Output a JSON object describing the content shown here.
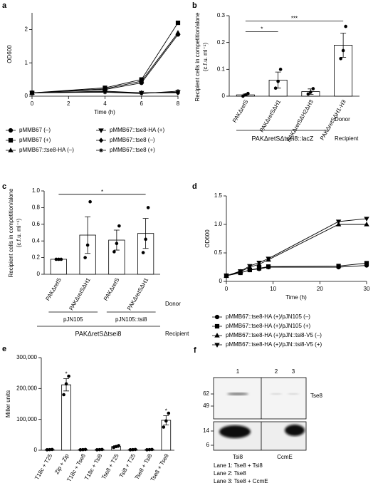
{
  "chart_data": [
    {
      "label": "a",
      "type": "line",
      "ylabel": "OD600",
      "xlabel": "Time (h)",
      "x": [
        0,
        4,
        6,
        8
      ],
      "xlim": [
        0,
        8
      ],
      "xticks": [
        0,
        2,
        4,
        6,
        8
      ],
      "ylim": [
        0,
        2.5
      ],
      "yticks": [
        0,
        1,
        2
      ],
      "series": [
        {
          "name": "pMMB67 (–)",
          "color": "#000000",
          "marker": "circle",
          "values": [
            0.1,
            0.2,
            0.4,
            1.85
          ]
        },
        {
          "name": "pMMB67 (+)",
          "color": "#000000",
          "marker": "square",
          "values": [
            0.1,
            0.25,
            0.5,
            2.2
          ]
        },
        {
          "name": "pMMB67::tse8-HA (–)",
          "color": "#000000",
          "marker": "triangle",
          "values": [
            0.1,
            0.22,
            0.45,
            1.9
          ]
        },
        {
          "name": "pMMB67::tse8-HA (+)",
          "color": "#000000",
          "marker": "tri-down",
          "values": [
            0.1,
            0.15,
            0.1,
            0.12
          ]
        },
        {
          "name": "pMMB67::tse8 (–)",
          "color": "#000000",
          "marker": "diamond",
          "values": [
            0.1,
            0.13,
            0.1,
            0.1
          ]
        },
        {
          "name": "pMMB67::tse8 (+)",
          "color": "#000000",
          "marker": "cross",
          "values": [
            0.1,
            0.12,
            0.08,
            0.15
          ]
        }
      ]
    },
    {
      "label": "b",
      "type": "bar",
      "ylabel": [
        "Recipient cells in competition/alone",
        "(c.f.u. ml⁻¹)"
      ],
      "categories": [
        "PAKΔretS",
        "PAKΔretSΔH1",
        "PAKΔretSΔH2ΔH3",
        "PAKΔretSΔH1-H3"
      ],
      "values": [
        0.005,
        0.06,
        0.017,
        0.19
      ],
      "errors": [
        0.003,
        0.03,
        0.01,
        0.045
      ],
      "points": [
        [
          0,
          0.005,
          0.01
        ],
        [
          0.03,
          0.055,
          0.1
        ],
        [
          0.008,
          0.015,
          0.028
        ],
        [
          0.14,
          0.17,
          0.26
        ]
      ],
      "ylim": [
        0,
        0.3
      ],
      "yticks": [
        0,
        0.1,
        0.2,
        0.3
      ],
      "annotations": [
        "*",
        "***"
      ],
      "donor_label": "Donor",
      "recipient": "PAKΔretSΔtsei8::lacZ",
      "recipient_label": "Recipient"
    },
    {
      "label": "c",
      "type": "bar",
      "ylabel": [
        "Recipient cells in competition/alone",
        "(c.f.u. ml⁻¹)"
      ],
      "categories": [
        "PAKΔretS",
        "PAKΔretSΔH1",
        "PAKΔretS",
        "PAKΔretSΔH1"
      ],
      "values": [
        0.18,
        0.47,
        0.41,
        0.49
      ],
      "errors": [
        0.005,
        0.22,
        0.12,
        0.18
      ],
      "points": [
        [
          0.18,
          0.18,
          0.18
        ],
        [
          0.2,
          0.35,
          0.87
        ],
        [
          0.27,
          0.37,
          0.58
        ],
        [
          0.26,
          0.42,
          0.8
        ]
      ],
      "ylim": [
        0,
        1.0
      ],
      "yticks": [
        0,
        0.2,
        0.4,
        0.6,
        0.8,
        {
          "value": 1,
          "label": "1.0"
        }
      ],
      "annotations": [
        "*"
      ],
      "groups": [
        "pJN105",
        "pJN105::tsi8"
      ],
      "donor_label": "Donor",
      "recipient": "PAKΔretSΔtsei8",
      "recipient_label": "Recipient"
    },
    {
      "label": "d",
      "type": "line",
      "ylabel": "OD600",
      "xlabel": "Time (h)",
      "x": [
        0,
        3,
        5,
        7,
        9,
        24,
        30
      ],
      "xlim": [
        0,
        30
      ],
      "xticks": [
        0,
        10,
        20,
        30
      ],
      "ylim": [
        0,
        1.5
      ],
      "yticks": [
        0,
        0.5,
        {
          "value": 1,
          "label": "1.0"
        },
        1.5
      ],
      "series": [
        {
          "name": "pMMB67::tse8-HA (+)/pJN105 (–)",
          "color": "#000000",
          "marker": "circle",
          "values": [
            0.1,
            0.15,
            0.2,
            0.22,
            0.25,
            0.25,
            0.28
          ]
        },
        {
          "name": "pMMB67::tse8-HA (+)/pJN105 (+)",
          "color": "#000000",
          "marker": "square",
          "values": [
            0.1,
            0.15,
            0.2,
            0.23,
            0.26,
            0.27,
            0.32
          ]
        },
        {
          "name": "pMMB67::tse8-HA (+)/pJN::tsi8-V5 (–)",
          "color": "#000000",
          "marker": "triangle",
          "values": [
            0.1,
            0.17,
            0.25,
            0.3,
            0.38,
            1.0,
            1.0
          ]
        },
        {
          "name": "pMMB67::tse8-HA (+)/pJN::tsi8-V5 (+)",
          "color": "#000000",
          "marker": "tri-down",
          "values": [
            0.1,
            0.18,
            0.27,
            0.33,
            0.4,
            1.05,
            1.1
          ]
        }
      ]
    },
    {
      "label": "e",
      "type": "bar",
      "ylabel": "Miller units",
      "categories": [
        "T18c + T25",
        "Zip + Zip",
        "T18c + Tse8",
        "T18c + Tsi8",
        "Tse8 + T25",
        "Tsi8 + T25",
        "Tse8 + Tsi8",
        "Tse8 + Tse8"
      ],
      "values": [
        2000,
        212000,
        2000,
        2000,
        12000,
        2000,
        2000,
        97000
      ],
      "errors": [
        500,
        20000,
        500,
        500,
        3000,
        500,
        500,
        15000
      ],
      "points": [
        [
          1500,
          2000,
          2500
        ],
        [
          180000,
          215000,
          240000
        ],
        [
          1500,
          2000,
          2500
        ],
        [
          1500,
          2000,
          2500
        ],
        [
          9000,
          12000,
          15000
        ],
        [
          1500,
          2000,
          2500
        ],
        [
          1500,
          2000,
          2500
        ],
        [
          75000,
          95000,
          120000
        ]
      ],
      "ylim": [
        0,
        300000
      ],
      "yticks": [
        0,
        {
          "value": 100000,
          "label": "100,000"
        },
        {
          "value": 200000,
          "label": "200,000"
        },
        {
          "value": 300000,
          "label": "300,000"
        }
      ],
      "annotations": [
        "*",
        "*"
      ]
    }
  ],
  "blot": {
    "label": "f",
    "lanes": [
      "1",
      "2",
      "3"
    ],
    "protein": "Tse8",
    "mw_top": [
      62,
      49
    ],
    "mw_bottom": [
      14,
      6
    ],
    "blot_labels": [
      "Tsi8",
      "CcmE"
    ],
    "legend": [
      "Lane 1: Tse8 + Tsi8",
      "Lane 2: Tse8",
      "Lane 3: Tse8 + CcmE"
    ]
  }
}
